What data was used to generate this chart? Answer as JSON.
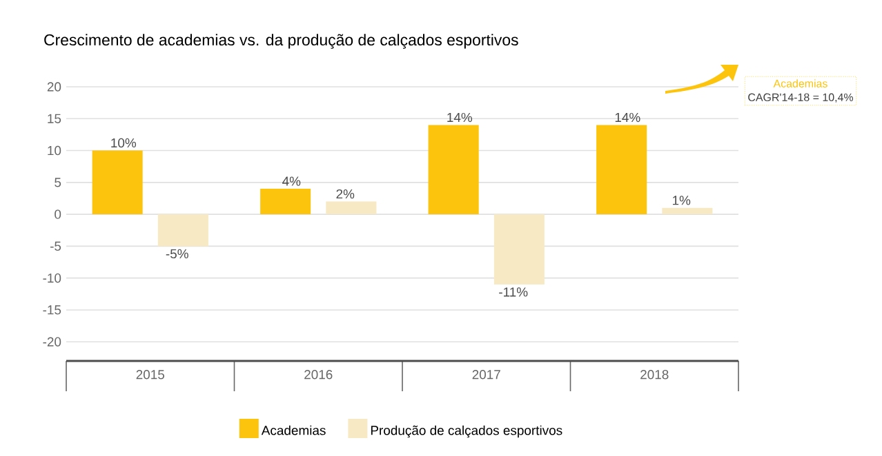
{
  "chart_data": {
    "type": "bar",
    "title": "Crescimento de academias vs. da produção de calçados esportivos",
    "categories": [
      "2015",
      "2016",
      "2017",
      "2018"
    ],
    "series": [
      {
        "name": "Academias",
        "color": "#fcc40c",
        "values": [
          10,
          4,
          14,
          14
        ],
        "value_labels": [
          "10%",
          "4%",
          "14%",
          "14%"
        ]
      },
      {
        "name": "Produção de calçados esportivos",
        "color": "#f7e9c4",
        "values": [
          -5,
          2,
          -11,
          1
        ],
        "value_labels": [
          "-5%",
          "2%",
          "-11%",
          "1%"
        ]
      }
    ],
    "ylim": [
      -23,
      20
    ],
    "yticks": [
      -20,
      -15,
      -10,
      -5,
      0,
      5,
      10,
      15,
      20
    ],
    "grid": "y",
    "legend": "bottom",
    "annotations": [
      "Academias",
      "CAGR'14-18 = 10,4%"
    ]
  }
}
